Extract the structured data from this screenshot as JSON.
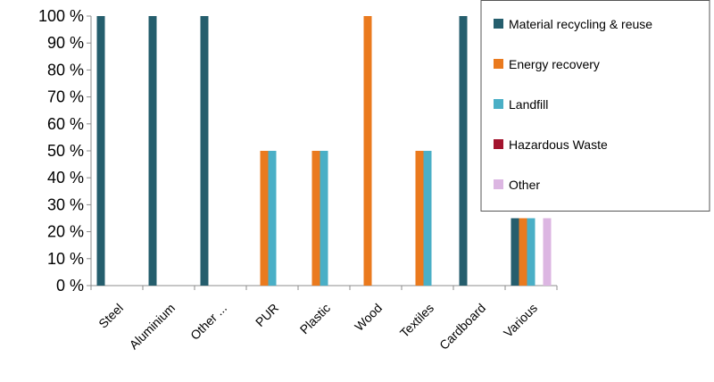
{
  "chart_data": {
    "type": "bar",
    "title": "",
    "xlabel": "",
    "ylabel": "",
    "ylim": [
      0,
      100
    ],
    "y_ticks": [
      "0 %",
      "10 %",
      "20 %",
      "30 %",
      "40 %",
      "50 %",
      "60 %",
      "70 %",
      "80 %",
      "90 %",
      "100 %"
    ],
    "categories": [
      "Steel",
      "Aluminium",
      "Other ...",
      "PUR",
      "Plastic",
      "Wood",
      "Textiles",
      "Cardboard",
      "Various"
    ],
    "series": [
      {
        "name": "Material recycling & reuse",
        "color": "#255e6d",
        "values": [
          100,
          100,
          100,
          0,
          0,
          0,
          0,
          100,
          25
        ]
      },
      {
        "name": "Energy recovery",
        "color": "#ea7a1e",
        "values": [
          0,
          0,
          0,
          50,
          50,
          100,
          50,
          0,
          25
        ]
      },
      {
        "name": "Landfill",
        "color": "#4aafc6",
        "values": [
          0,
          0,
          0,
          50,
          50,
          0,
          50,
          0,
          25
        ]
      },
      {
        "name": "Hazardous Waste",
        "color": "#a3142e",
        "values": [
          0,
          0,
          0,
          0,
          0,
          0,
          0,
          0,
          0
        ]
      },
      {
        "name": "Other",
        "color": "#dcb6e2",
        "values": [
          0,
          0,
          0,
          0,
          0,
          0,
          0,
          0,
          25
        ]
      }
    ],
    "grid": false,
    "legend_position": "top-right"
  }
}
